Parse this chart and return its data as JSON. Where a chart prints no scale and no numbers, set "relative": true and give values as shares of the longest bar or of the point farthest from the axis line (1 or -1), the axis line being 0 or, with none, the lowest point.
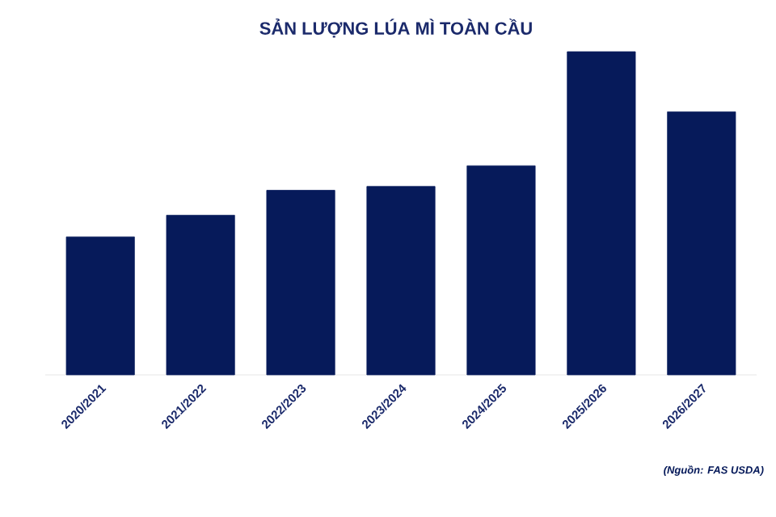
{
  "chart_data": {
    "type": "bar",
    "title": "SẢN LƯỢNG LÚA MÌ TOÀN CẦU",
    "categories": [
      "2020/2021",
      "2021/2022",
      "2022/2023",
      "2023/2024",
      "2024/2025",
      "2025/2026",
      "2026/2027"
    ],
    "values": [
      0.427,
      0.494,
      0.571,
      0.583,
      0.647,
      1,
      0.814
    ],
    "color": "#061a5a",
    "relative": true,
    "annotations": [
      "(Nguồn: FAS USDA)"
    ]
  }
}
